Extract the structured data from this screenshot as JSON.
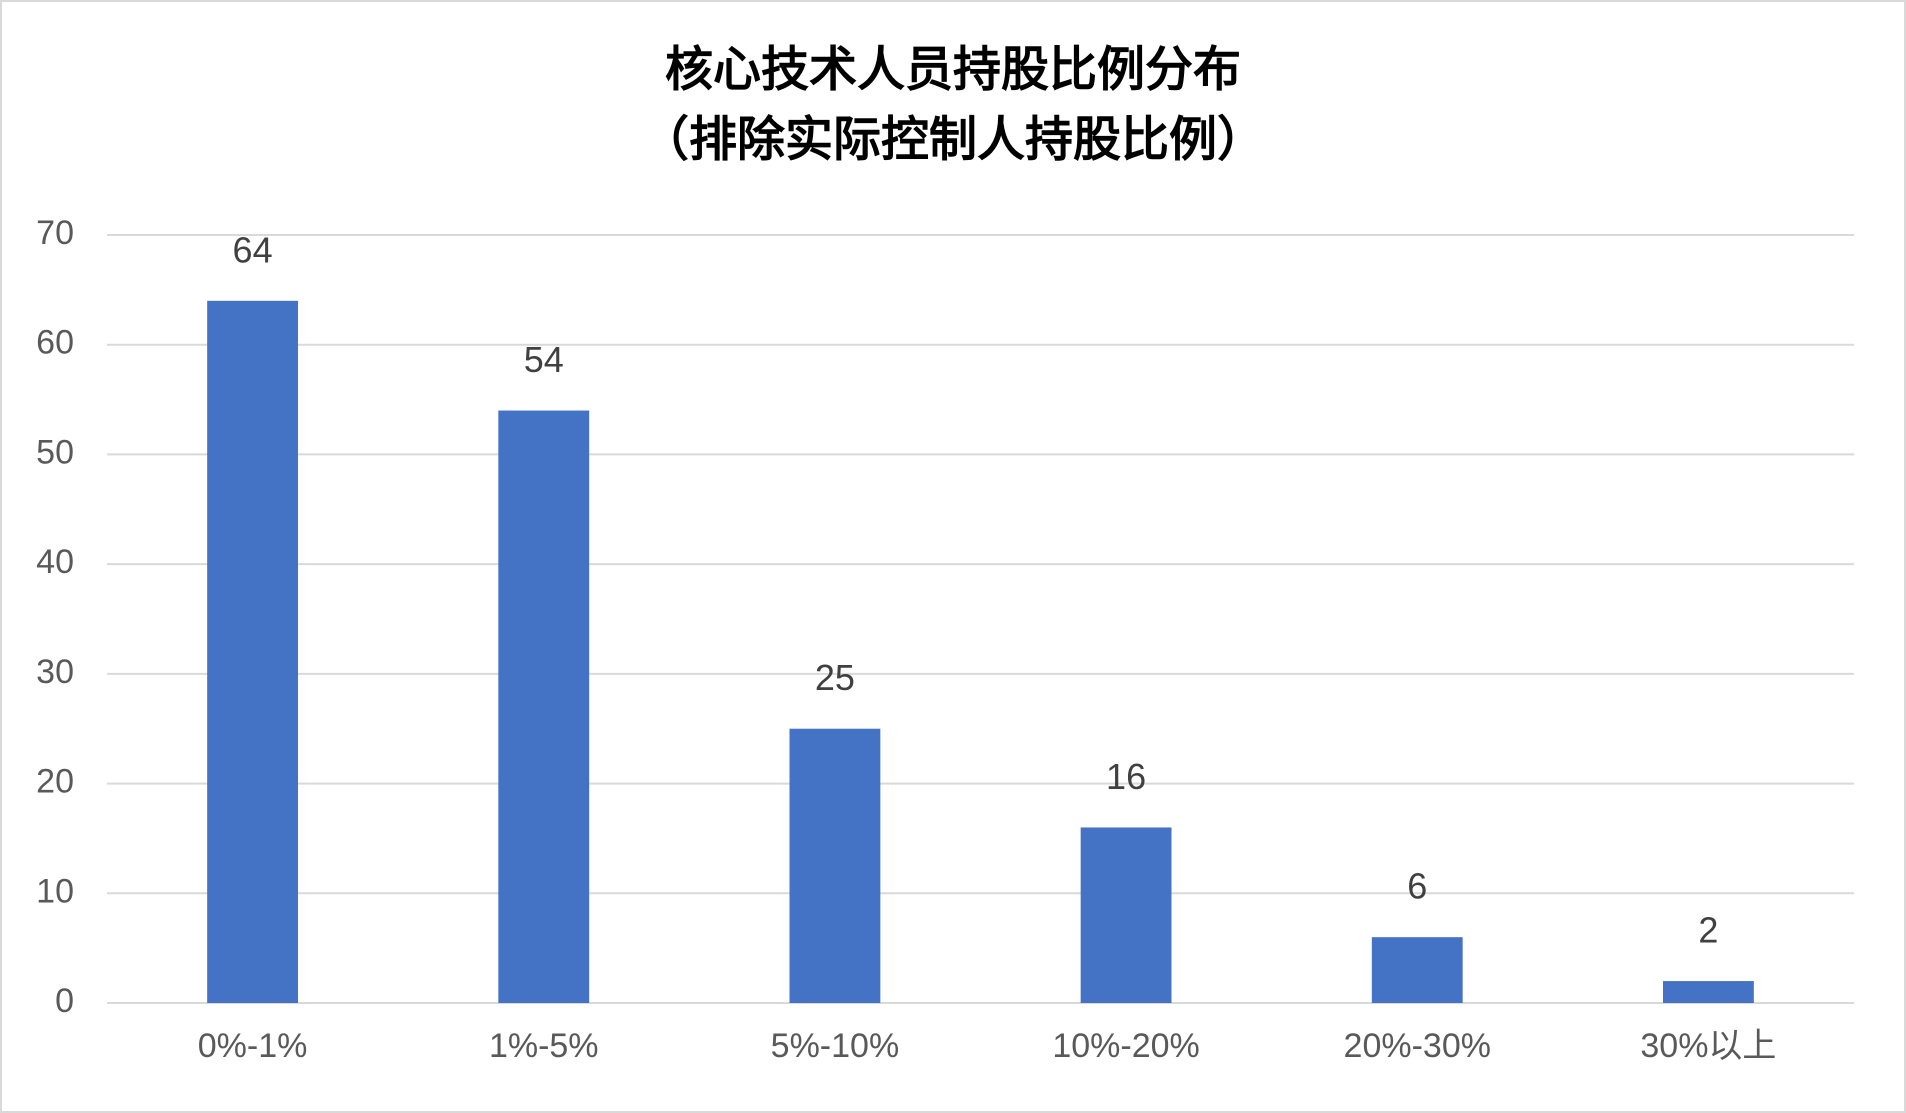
{
  "chart_data": {
    "type": "bar",
    "title": "核心技术人员持股比例分布",
    "subtitle": "（排除实际控制人持股比例）",
    "categories": [
      "0%-1%",
      "1%-5%",
      "5%-10%",
      "10%-20%",
      "20%-30%",
      "30%以上"
    ],
    "values": [
      64,
      54,
      25,
      16,
      6,
      2
    ],
    "color": "#4472c4",
    "ylim": [
      0,
      70
    ],
    "yticks": [
      0,
      10,
      20,
      30,
      40,
      50,
      60,
      70
    ],
    "grid": true
  }
}
